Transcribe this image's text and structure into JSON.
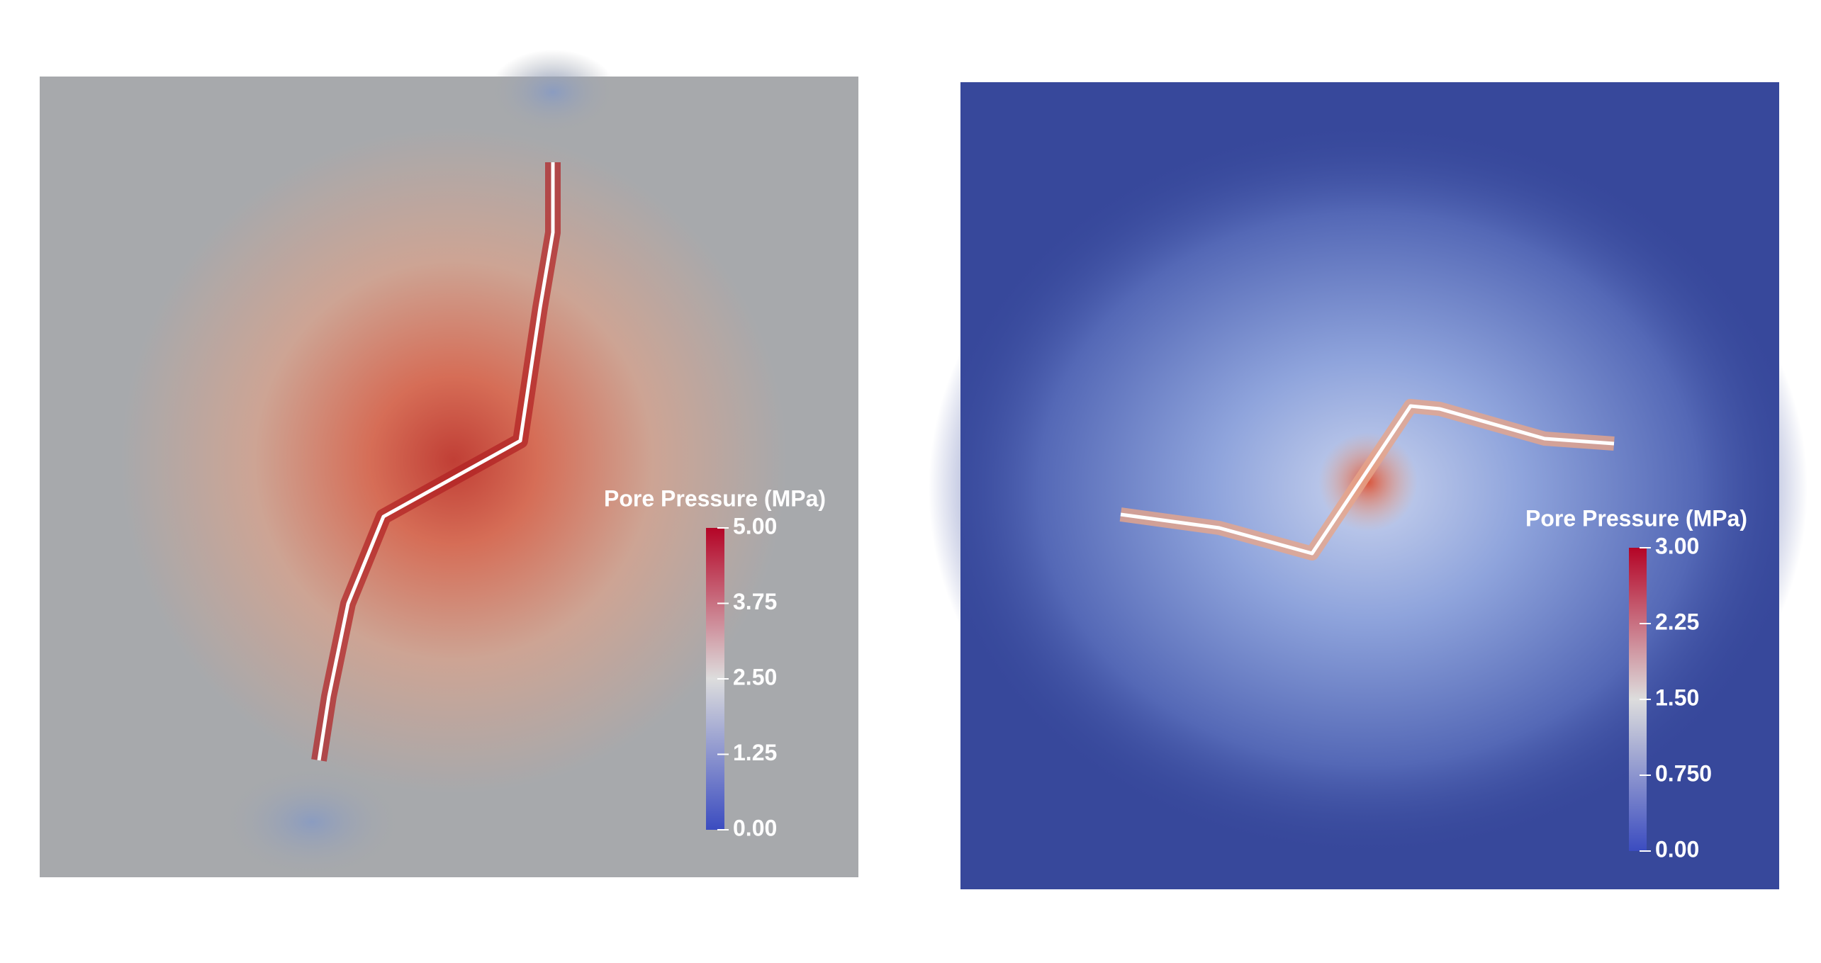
{
  "chart_data": [
    {
      "type": "colormap",
      "colorbar_title": "Pore Pressure (MPa)",
      "clim": [
        0,
        5
      ],
      "cticks": [
        {
          "value": 0,
          "label": "0.00"
        },
        {
          "value": 1.25,
          "label": "1.25"
        },
        {
          "value": 2.5,
          "label": "2.50"
        },
        {
          "value": 3.75,
          "label": "3.75"
        },
        {
          "value": 5,
          "label": "5.00"
        }
      ],
      "colors": [
        "#3b4cc0",
        "#dddddd",
        "#b40426"
      ]
    },
    {
      "type": "colormap",
      "colorbar_title": "Pore Pressure (MPa)",
      "clim": [
        0,
        3
      ],
      "cticks": [
        {
          "value": 0,
          "label": "0.00"
        },
        {
          "value": 0.75,
          "label": "0.750"
        },
        {
          "value": 1.5,
          "label": "1.50"
        },
        {
          "value": 2.25,
          "label": "2.25"
        },
        {
          "value": 3,
          "label": "3.00"
        }
      ],
      "colors": [
        "#3b4cc0",
        "#dddddd",
        "#b40426"
      ]
    }
  ]
}
